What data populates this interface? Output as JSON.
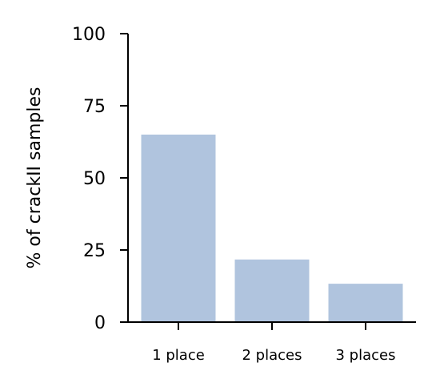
{
  "chart_data": {
    "type": "bar",
    "categories": [
      "1 place",
      "2 places",
      "3 places"
    ],
    "values": [
      65,
      21.7,
      13.3
    ],
    "xlabel": "",
    "ylabel": "% of crackII samples",
    "ylim": [
      0,
      100
    ],
    "yticks": [
      "0",
      "25",
      "50",
      "75",
      "100"
    ],
    "bar_color": "#b0c4de",
    "grid": false,
    "legend": "none"
  }
}
